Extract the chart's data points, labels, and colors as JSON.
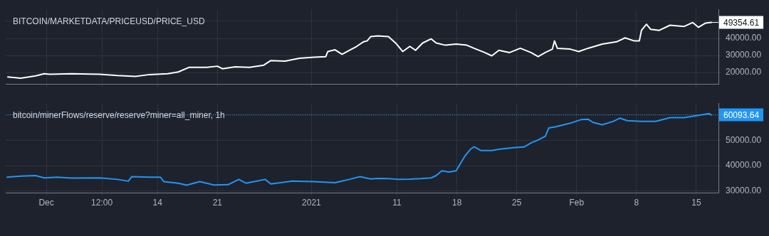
{
  "chart_data": [
    {
      "type": "line",
      "title": "BITCOIN/MARKETDATA/PRICEUSD/PRICE_USD",
      "x": [
        "2020-11-26T12:00",
        "2020-11-28T00:00",
        "2020-11-29T18:00",
        "2020-11-30T18:00",
        "2020-12-01T10:00",
        "2020-12-03T22:00",
        "2020-12-07T06:00",
        "2020-12-09T08:00",
        "2020-12-11T10:00",
        "2020-12-13T02:00",
        "2020-12-15T04:00",
        "2020-12-16T10:00",
        "2020-12-17T16:00",
        "2020-12-19T18:00",
        "2020-12-21T00:00",
        "2020-12-21T14:00",
        "2020-12-23T02:00",
        "2020-12-24T18:00",
        "2020-12-26T10:00",
        "2020-12-27T06:00",
        "2020-12-28T22:00",
        "2020-12-30T14:00",
        "2021-01-01T06:00",
        "2021-01-02T16:00",
        "2021-01-02T22:00",
        "2021-01-03T18:00",
        "2021-01-04T14:00",
        "2021-01-05T10:00",
        "2021-01-06T06:00",
        "2021-01-07T02:00",
        "2021-01-07T12:00",
        "2021-01-07T22:00",
        "2021-01-08T18:00",
        "2021-01-10T00:00",
        "2021-01-10T20:00",
        "2021-01-11T16:00",
        "2021-01-12T12:00",
        "2021-01-13T04:00",
        "2021-01-14T00:00",
        "2021-01-15T00:00",
        "2021-01-15T14:00",
        "2021-01-16T16:00",
        "2021-01-17T22:00",
        "2021-01-19T04:00",
        "2021-01-20T00:00",
        "2021-01-21T06:00",
        "2021-01-22T02:00",
        "2021-01-22T22:00",
        "2021-01-24T04:00",
        "2021-01-25T10:00",
        "2021-01-26T16:00",
        "2021-01-27T12:00",
        "2021-01-28T08:00",
        "2021-01-29T04:00",
        "2021-01-29T10:00",
        "2021-01-29T18:00",
        "2021-01-31T06:00",
        "2021-02-01T06:00",
        "2021-02-02T08:00",
        "2021-02-04T00:00",
        "2021-02-05T16:00",
        "2021-02-06T16:00",
        "2021-02-07T18:00",
        "2021-02-08T08:00",
        "2021-02-08T14:00",
        "2021-02-09T04:00",
        "2021-02-09T16:00",
        "2021-02-10T16:00",
        "2021-02-11T22:00",
        "2021-02-13T14:00",
        "2021-02-14T14:00",
        "2021-02-15T06:00",
        "2021-02-16T02:00",
        "2021-02-16T18:00"
      ],
      "series": [
        {
          "color": "#ffffff",
          "values": [
            17400,
            16700,
            18000,
            19300,
            19000,
            19300,
            19000,
            18200,
            17700,
            18800,
            19300,
            20300,
            23000,
            23000,
            23700,
            22200,
            23300,
            23000,
            24300,
            27000,
            26700,
            28300,
            29000,
            29300,
            32300,
            33300,
            30700,
            33000,
            35200,
            38000,
            38500,
            41000,
            41500,
            41000,
            37300,
            32300,
            35300,
            33000,
            37300,
            39700,
            37300,
            36000,
            36700,
            36000,
            34200,
            31700,
            29800,
            33000,
            31700,
            34200,
            31700,
            29300,
            31700,
            33700,
            38500,
            34200,
            33700,
            32300,
            34200,
            36700,
            38000,
            40300,
            38500,
            38500,
            44700,
            48300,
            45300,
            44700,
            47700,
            47000,
            49300,
            46500,
            49000,
            49354.61
          ]
        }
      ],
      "xlim": [
        "2020-11-26T06:00",
        "2021-02-17T14:00"
      ],
      "xticks": [
        {
          "value": "2020-12-01",
          "label": null
        },
        {
          "value": "2020-12-07T12:00",
          "label": null
        },
        {
          "value": "2020-12-14",
          "label": null
        },
        {
          "value": "2020-12-21",
          "label": null
        },
        {
          "value": "2021-01-01",
          "label": null
        },
        {
          "value": "2021-01-11",
          "label": null
        },
        {
          "value": "2021-01-18",
          "label": null
        },
        {
          "value": "2021-01-25",
          "label": null
        },
        {
          "value": "2021-02-01",
          "label": null
        },
        {
          "value": "2021-02-08",
          "label": null
        },
        {
          "value": "2021-02-15",
          "label": null
        }
      ],
      "ylim": [
        13000,
        57000
      ],
      "yticks": [
        {
          "value": 20000,
          "label": "20000.00"
        },
        {
          "value": 30000,
          "label": "30000.00"
        },
        {
          "value": 40000,
          "label": "40000.00"
        },
        {
          "value": 50000,
          "label": null
        }
      ],
      "annotations": [
        {
          "text": "49354.61",
          "x": "2021-02-16T18:00",
          "y": 49354.61
        }
      ],
      "grid": true,
      "tick_labels": "y"
    },
    {
      "type": "line",
      "title": "bitcoin/minerFlows/reserve/reserve?miner=all_miner, 1h",
      "x": [
        "2020-11-26T10:00",
        "2020-11-28T02:00",
        "2020-11-29T18:00",
        "2020-11-30T18:00",
        "2020-12-02T06:00",
        "2020-12-03T22:00",
        "2020-12-07T06:00",
        "2020-12-09T08:00",
        "2020-12-10T14:00",
        "2020-12-11T00:00",
        "2020-12-13T02:00",
        "2020-12-14T08:00",
        "2020-12-14T18:00",
        "2020-12-16T10:00",
        "2020-12-17T10:00",
        "2020-12-18T22:00",
        "2020-12-19T18:00",
        "2020-12-20T14:00",
        "2020-12-22T06:00",
        "2020-12-23T12:00",
        "2020-12-24T08:00",
        "2020-12-26T14:00",
        "2020-12-27T06:00",
        "2020-12-29T18:00",
        "2021-01-01T06:00",
        "2021-01-03T18:00",
        "2021-01-05T10:00",
        "2021-01-06T16:00",
        "2021-01-07T22:00",
        "2021-01-08T18:00",
        "2021-01-10T00:00",
        "2021-01-11T06:00",
        "2021-01-12T12:00",
        "2021-01-13T18:00",
        "2021-01-15T00:00",
        "2021-01-15T14:00",
        "2021-01-16T06:00",
        "2021-01-17T02:00",
        "2021-01-17T22:00",
        "2021-01-18T08:00",
        "2021-01-18T22:00",
        "2021-01-19T14:00",
        "2021-01-20T00:00",
        "2021-01-20T20:00",
        "2021-01-22T02:00",
        "2021-01-22T22:00",
        "2021-01-24T14:00",
        "2021-01-25T20:00",
        "2021-01-26T16:00",
        "2021-01-27T12:00",
        "2021-01-28T08:00",
        "2021-01-28T18:00",
        "2021-01-29T14:00",
        "2021-01-31T06:00",
        "2021-02-01T12:00",
        "2021-02-02T08:00",
        "2021-02-02T22:00",
        "2021-02-04T00:00",
        "2021-02-05T06:00",
        "2021-02-06T02:00",
        "2021-02-06T22:00",
        "2021-02-08T14:00",
        "2021-02-10T06:00",
        "2021-02-11T22:00",
        "2021-02-13T14:00",
        "2021-02-15T06:00",
        "2021-02-16T12:00",
        "2021-02-16T18:00"
      ],
      "series": [
        {
          "color": "#2196f3",
          "values": [
            35500,
            35900,
            36100,
            35200,
            35500,
            35100,
            35200,
            34600,
            33900,
            35700,
            35500,
            35500,
            33700,
            33100,
            32300,
            33700,
            33100,
            32400,
            32500,
            34600,
            33100,
            34600,
            32800,
            33900,
            33700,
            33300,
            34600,
            35700,
            34800,
            35000,
            34900,
            34600,
            34700,
            34900,
            35200,
            36100,
            38000,
            37500,
            38000,
            40400,
            43700,
            46500,
            47500,
            46000,
            46000,
            46500,
            47100,
            47400,
            49000,
            50200,
            51600,
            54900,
            55400,
            56800,
            58200,
            58400,
            57100,
            56200,
            57500,
            58800,
            57800,
            57500,
            57500,
            59000,
            59000,
            59900,
            60600,
            60093.64
          ]
        }
      ],
      "xlim": [
        "2020-11-26T06:00",
        "2021-02-17T14:00"
      ],
      "xticks": [
        {
          "value": "2020-12-01",
          "label": "Dec"
        },
        {
          "value": "2020-12-07T12:00",
          "label": "12:00"
        },
        {
          "value": "2020-12-14",
          "label": "14"
        },
        {
          "value": "2020-12-21",
          "label": "21"
        },
        {
          "value": "2021-01-01",
          "label": "2021"
        },
        {
          "value": "2021-01-11",
          "label": "11"
        },
        {
          "value": "2021-01-18",
          "label": "18"
        },
        {
          "value": "2021-01-25",
          "label": "25"
        },
        {
          "value": "2021-02-01",
          "label": "Feb"
        },
        {
          "value": "2021-02-08",
          "label": "8"
        },
        {
          "value": "2021-02-15",
          "label": "15"
        }
      ],
      "ylim": [
        29200,
        64700
      ],
      "yticks": [
        {
          "value": 30000,
          "label": "30000.00"
        },
        {
          "value": 40000,
          "label": "40000.00"
        },
        {
          "value": 50000,
          "label": "50000.00"
        },
        {
          "value": 60000,
          "label": null
        }
      ],
      "ref_lines": [
        {
          "axis": "y",
          "value": 60093.64,
          "label": "60093.64",
          "color": "#2196f3",
          "line_style": "dotted"
        }
      ],
      "grid": true
    }
  ]
}
